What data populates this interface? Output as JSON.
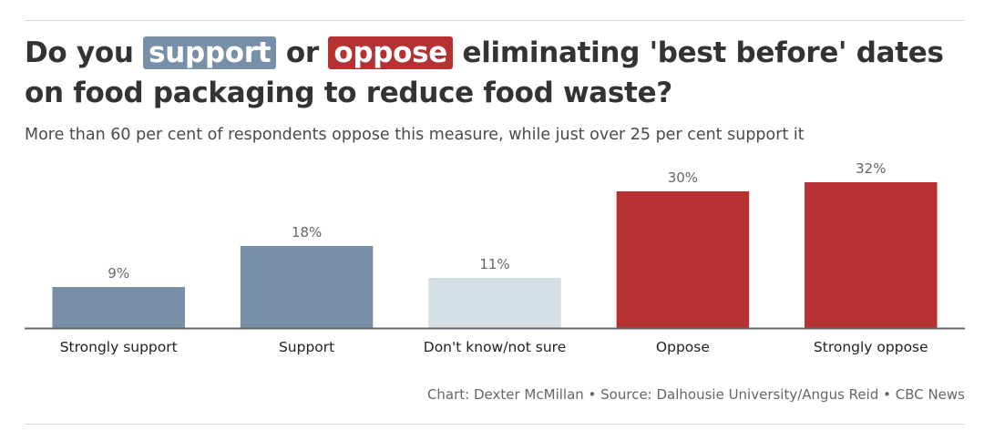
{
  "title": {
    "part1": "Do you",
    "support": "support",
    "part2": "or",
    "oppose": "oppose",
    "part3": "eliminating 'best before' dates on food packaging to reduce food waste?"
  },
  "subtitle": "More than 60 per cent of respondents oppose this measure, while just over 25 per cent support it",
  "colors": {
    "support": "#7890a7",
    "neutral": "#d5e0e6",
    "oppose": "#b53132",
    "baseline": "#666666",
    "value_label": "#666666",
    "category_label": "#222222"
  },
  "chart_data": {
    "type": "bar",
    "categories": [
      "Strongly support",
      "Support",
      "Don't know/not sure",
      "Oppose",
      "Strongly oppose"
    ],
    "values": [
      9,
      18,
      11,
      30,
      32
    ],
    "value_labels": [
      "9%",
      "18%",
      "11%",
      "30%",
      "32%"
    ],
    "bar_colors": [
      "#7890a7",
      "#7890a7",
      "#d5e0e6",
      "#b53132",
      "#b53132"
    ],
    "ylim": [
      0,
      35
    ],
    "grid": false,
    "xlabel": "",
    "ylabel": ""
  },
  "credit": "Chart: Dexter McMillan • Source: Dalhousie University/Angus Reid • CBC News"
}
